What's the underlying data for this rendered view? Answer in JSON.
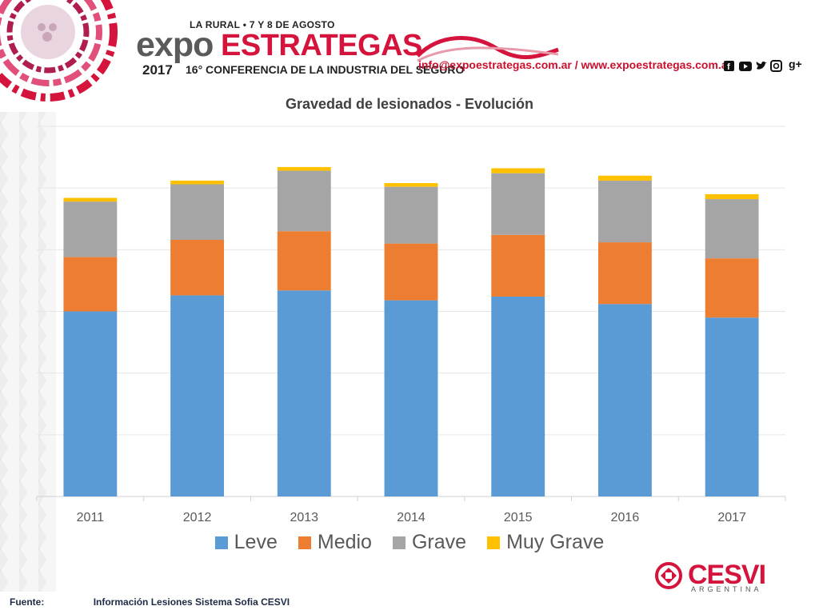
{
  "header": {
    "venue": "LA RURAL • 7 Y 8 DE AGOSTO",
    "brand_expo": "expo",
    "brand_estrategas": "ESTRATEGAS",
    "year": "2017",
    "conference": "16° CONFERENCIA DE LA INDUSTRIA DEL SEGURO",
    "contact": "info@expoestrategas.com.ar / www.expoestrategas.com.ar",
    "social_icons": [
      "facebook-icon",
      "youtube-icon",
      "twitter-icon",
      "instagram-icon",
      "google-plus-icon"
    ],
    "social_gplus": "g+"
  },
  "colors": {
    "leve": "#5b9bd5",
    "medio": "#ed7d31",
    "grave": "#a5a5a5",
    "muy_grave": "#ffc000",
    "brand_red": "#d4143c"
  },
  "chart_data": {
    "type": "bar",
    "stacked": true,
    "title": "Gravedad de lesionados - Evolución",
    "categories": [
      "2011",
      "2012",
      "2013",
      "2014",
      "2015",
      "2016",
      "2017"
    ],
    "series": [
      {
        "name": "Leve",
        "values": [
          150,
          163,
          167,
          159,
          162,
          156,
          145
        ]
      },
      {
        "name": "Medio",
        "values": [
          44,
          45,
          48,
          46,
          50,
          50,
          48
        ]
      },
      {
        "name": "Grave",
        "values": [
          45,
          45,
          49,
          46,
          50,
          50,
          48
        ]
      },
      {
        "name": "Muy Grave",
        "values": [
          3,
          3,
          3,
          3,
          4,
          4,
          4
        ]
      }
    ],
    "ylim": [
      0,
      300
    ],
    "grid": true,
    "legend": "bottom"
  },
  "footer": {
    "label": "Fuente:",
    "source": "Información Lesiones  Sistema Sofia CESVI"
  },
  "cesvi": {
    "name": "CESVI",
    "country": "ARGENTINA"
  }
}
